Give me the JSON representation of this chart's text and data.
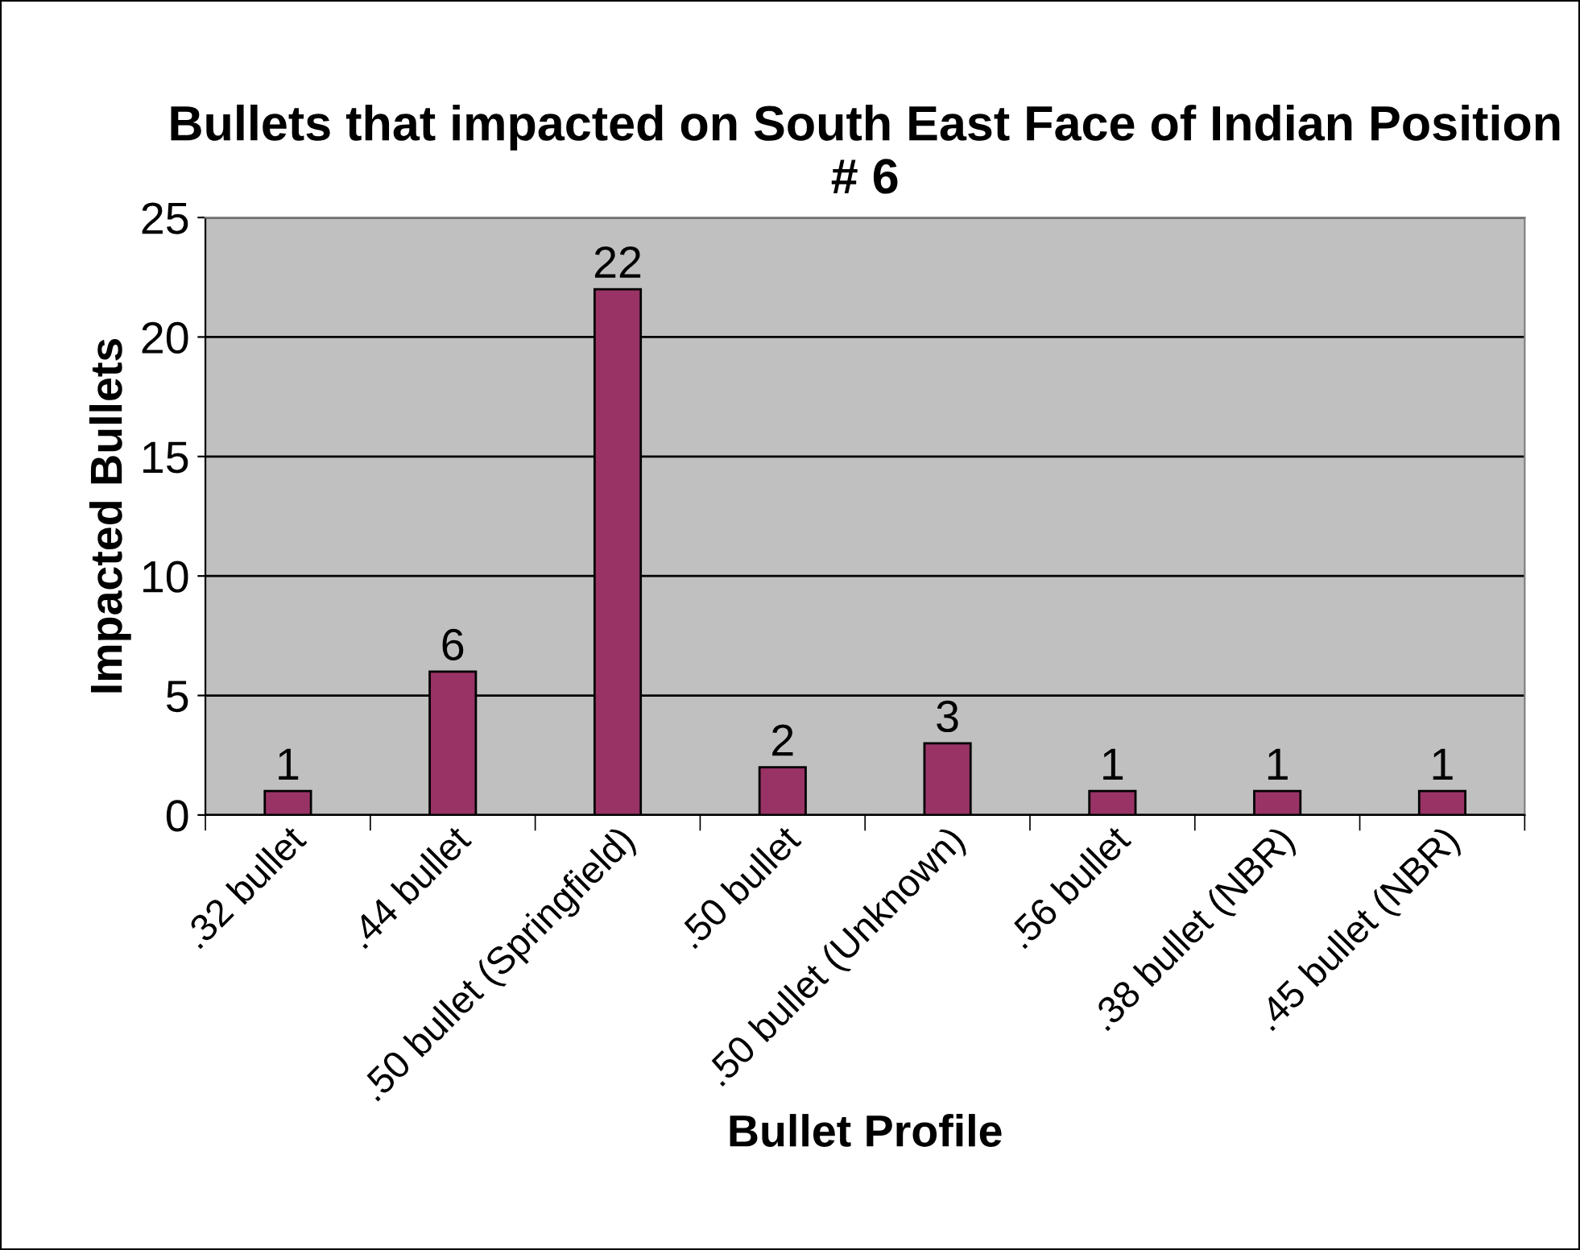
{
  "chart_data": {
    "type": "bar",
    "title": "Bullets that impacted on South East Face of Indian Position # 6",
    "xlabel": "Bullet Profile",
    "ylabel": "Impacted Bullets",
    "categories": [
      ".32 bullet",
      ".44 bullet",
      ".50 bullet (Springfield)",
      ".50 bullet",
      ".50 bullet (Unknown)",
      ".56 bullet",
      ".38 bullet (NBR)",
      ".45 bullet (NBR)"
    ],
    "values": [
      1,
      6,
      22,
      2,
      3,
      1,
      1,
      1
    ],
    "color": "#993366",
    "ylim": [
      0,
      25
    ],
    "yticks": [
      0,
      5,
      10,
      15,
      20,
      25
    ],
    "grid": "y",
    "data_labels": true,
    "legend": false
  }
}
